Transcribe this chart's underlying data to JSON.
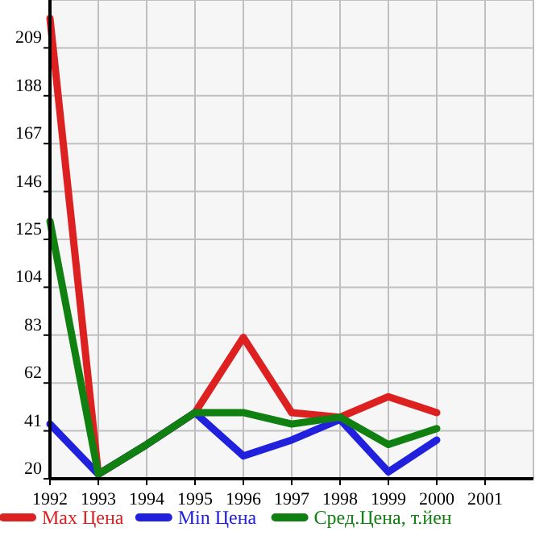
{
  "chart_data": {
    "type": "line",
    "x": [
      1992,
      1993,
      1994,
      1995,
      1996,
      1997,
      1998,
      1999,
      2000
    ],
    "series": [
      {
        "name": "Max Цена",
        "color": "#dd2020",
        "values": [
          222,
          22,
          35,
          49,
          82,
          49,
          47,
          56,
          49
        ]
      },
      {
        "name": "Min Цена",
        "color": "#2020dd",
        "values": [
          44,
          22,
          35,
          49,
          30,
          37,
          46,
          23,
          37
        ]
      },
      {
        "name": "Сред.Цена, т.йен",
        "color": "#108010",
        "values": [
          133,
          22,
          35,
          49,
          49,
          44,
          47,
          35,
          42
        ]
      }
    ],
    "xlim": [
      1992,
      2002
    ],
    "xticks": [
      1992,
      1993,
      1994,
      1995,
      1996,
      1997,
      1998,
      1999,
      2000,
      2001
    ],
    "ylim": [
      20,
      230
    ],
    "yticks": [
      20,
      41,
      62,
      83,
      104,
      125,
      146,
      167,
      188,
      209
    ],
    "grid": true,
    "legend": "bottom",
    "marker": "none",
    "line_style": "solid"
  }
}
